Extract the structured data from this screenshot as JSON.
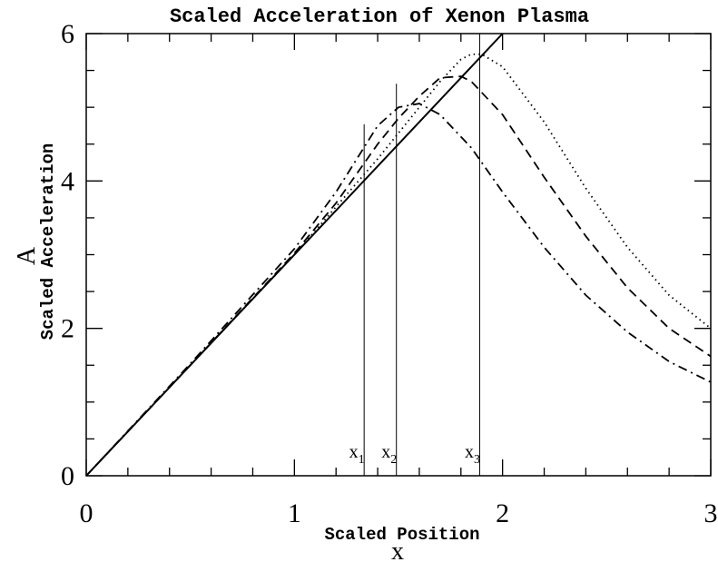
{
  "chart_data": {
    "type": "line",
    "title": "Scaled Acceleration of Xenon Plasma",
    "x_label": "x",
    "x_label_sub": "Scaled Position",
    "y_label": "A",
    "y_label_sub": "Scaled Acceleration",
    "xlim": [
      0,
      3
    ],
    "ylim": [
      0,
      6
    ],
    "xticks": [
      0,
      1,
      2,
      3
    ],
    "yticks": [
      0,
      2,
      4,
      6
    ],
    "x_minor_ticks": [
      0.2,
      0.4,
      0.6,
      0.8,
      1.2,
      1.4,
      1.6,
      1.8,
      2.2,
      2.4,
      2.6,
      2.8
    ],
    "y_minor_ticks": [
      0.5,
      1,
      1.5,
      2.5,
      3,
      3.5,
      4.5,
      5,
      5.5
    ],
    "series": [
      {
        "style": "solid",
        "color": "#000000",
        "x": [
          0,
          2
        ],
        "values": [
          0,
          6
        ]
      },
      {
        "style": "dotted",
        "color": "#000000",
        "x": [
          0,
          0.5,
          1.0,
          1.2,
          1.4,
          1.5,
          1.6,
          1.7,
          1.8,
          1.85,
          1.9,
          2.0,
          2.2,
          2.4,
          2.6,
          2.8,
          3.0
        ],
        "values": [
          0,
          1.5,
          3.0,
          3.65,
          4.3,
          4.65,
          5.0,
          5.35,
          5.65,
          5.72,
          5.72,
          5.55,
          4.8,
          3.9,
          3.1,
          2.45,
          2.0
        ]
      },
      {
        "style": "dashed",
        "color": "#000000",
        "x": [
          0,
          0.5,
          1.0,
          1.2,
          1.4,
          1.5,
          1.6,
          1.7,
          1.8,
          1.85,
          1.9,
          2.0,
          2.2,
          2.4,
          2.6,
          2.8,
          3.0
        ],
        "values": [
          0,
          1.5,
          3.02,
          3.7,
          4.5,
          4.85,
          5.15,
          5.4,
          5.42,
          5.35,
          5.2,
          4.9,
          4.05,
          3.25,
          2.55,
          2.0,
          1.62
        ]
      },
      {
        "style": "dashdot",
        "color": "#000000",
        "x": [
          0,
          0.5,
          1.0,
          1.2,
          1.4,
          1.5,
          1.6,
          1.7,
          1.8,
          1.85,
          1.9,
          2.0,
          2.2,
          2.4,
          2.6,
          2.8,
          3.0
        ],
        "values": [
          0,
          1.52,
          3.08,
          3.85,
          4.75,
          5.0,
          5.05,
          4.9,
          4.6,
          4.45,
          4.25,
          3.85,
          3.1,
          2.45,
          1.95,
          1.55,
          1.27
        ]
      }
    ],
    "markers": [
      {
        "x": 1.335,
        "top": 4.77,
        "label": "x",
        "subscript": "1"
      },
      {
        "x": 1.49,
        "top": 5.32,
        "label": "x",
        "subscript": "2"
      },
      {
        "x": 1.89,
        "top": 6,
        "label": "x",
        "subscript": "3"
      }
    ]
  }
}
